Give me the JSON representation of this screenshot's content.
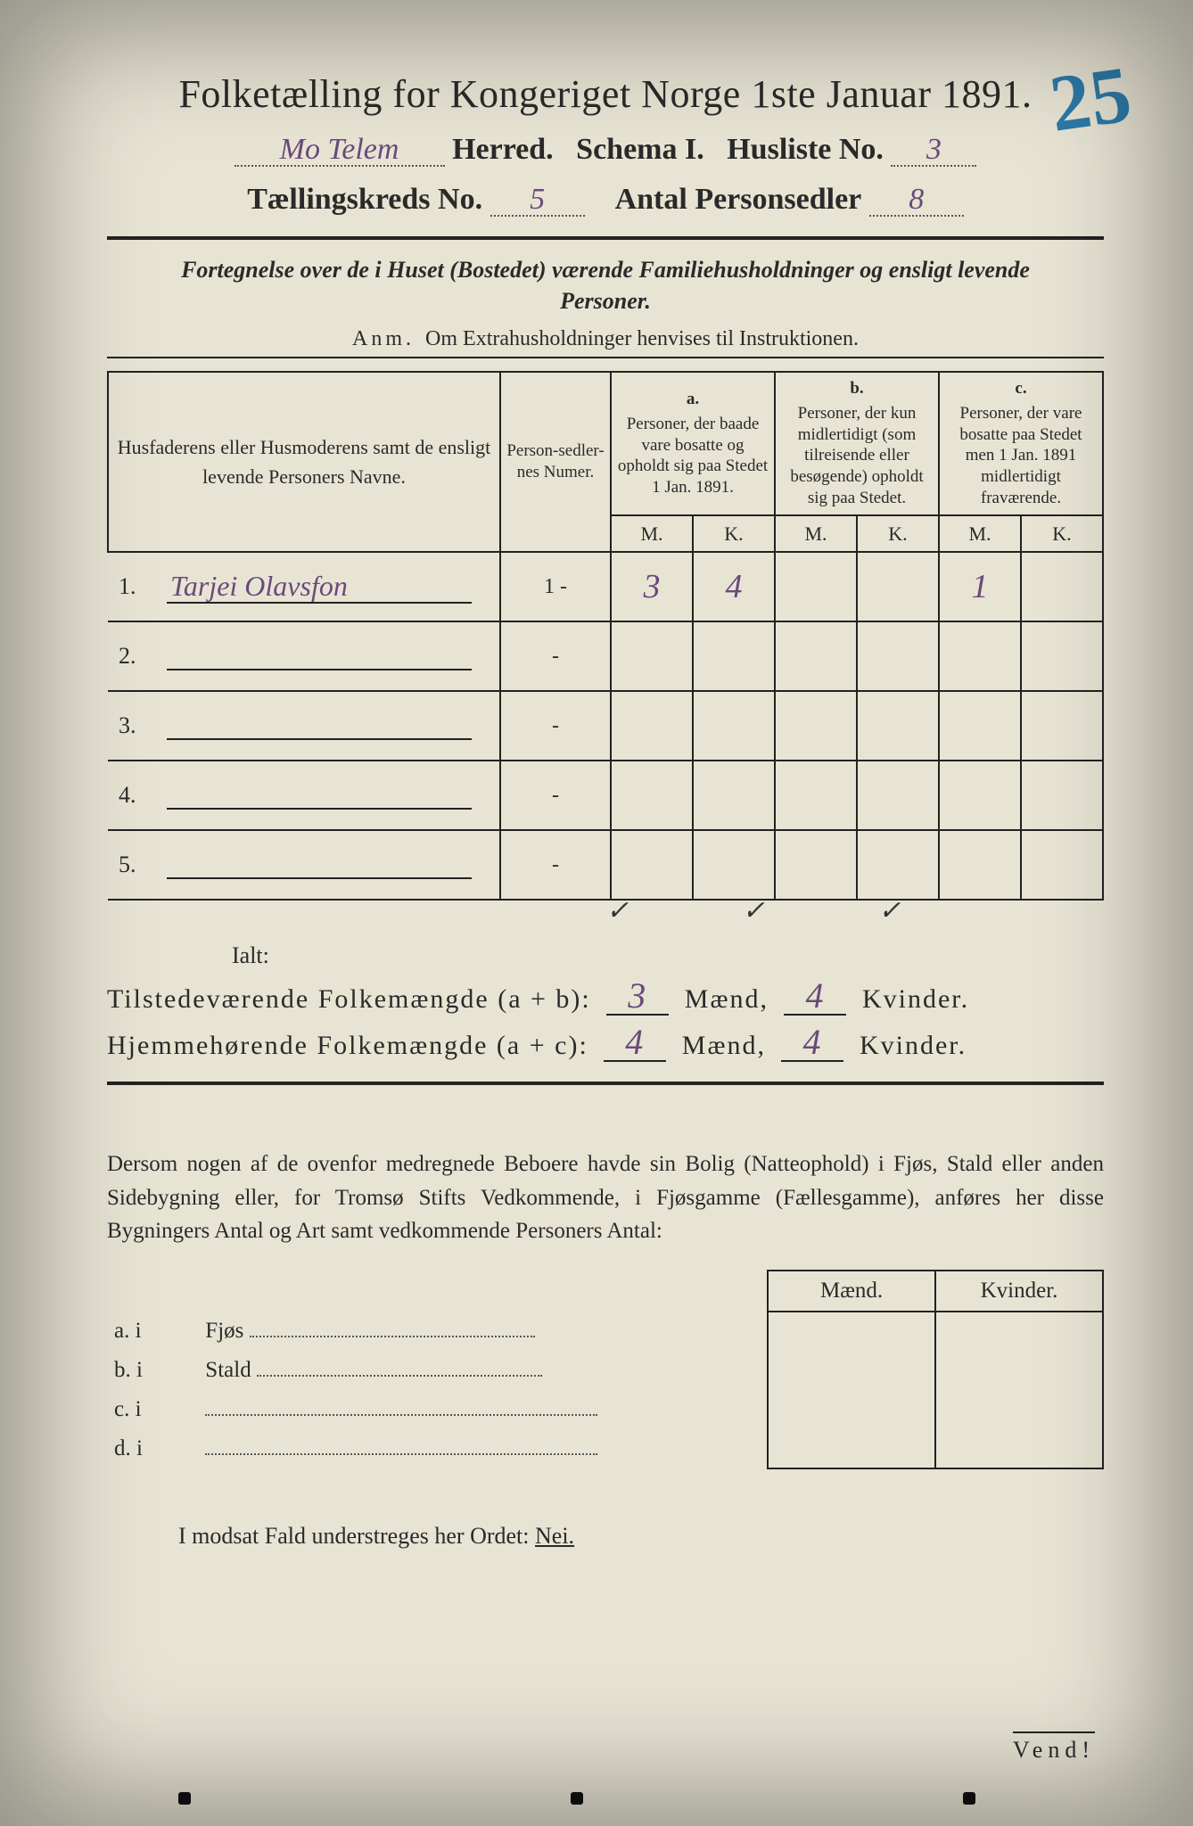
{
  "annotation": {
    "page_number": "25"
  },
  "header": {
    "title": "Folketælling for Kongeriget Norge 1ste Januar 1891.",
    "line2": {
      "herred_value": "Mo Telem",
      "herred_label": "Herred.",
      "schema_label": "Schema I.",
      "husliste_label": "Husliste No.",
      "husliste_value": "3"
    },
    "line3": {
      "kreds_label": "Tællingskreds No.",
      "kreds_value": "5",
      "antal_label": "Antal Personsedler",
      "antal_value": "8"
    }
  },
  "subhead": "Fortegnelse over de i Huset (Bostedet) værende Familiehusholdninger og ensligt levende Personer.",
  "anm": {
    "label": "Anm.",
    "text": "Om Extrahusholdninger henvises til Instruktionen."
  },
  "table": {
    "head": {
      "name_col": "Husfaderens eller Husmoderens samt de ensligt levende Personers Navne.",
      "ps_col": "Person-sedler-nes Numer.",
      "a": {
        "letter": "a.",
        "text": "Personer, der baade vare bosatte og opholdt sig paa Stedet 1 Jan. 1891."
      },
      "b": {
        "letter": "b.",
        "text": "Personer, der kun midlertidigt (som tilreisende eller besøgende) opholdt sig paa Stedet."
      },
      "c": {
        "letter": "c.",
        "text": "Personer, der vare bosatte paa Stedet men 1 Jan. 1891 midlertidigt fraværende."
      },
      "M": "M.",
      "K": "K."
    },
    "rows": [
      {
        "n": "1.",
        "name": "Tarjei Olavsfon",
        "ps": "1 -",
        "aM": "3",
        "aK": "4",
        "bM": "",
        "bK": "",
        "cM": "1",
        "cK": ""
      },
      {
        "n": "2.",
        "name": "",
        "ps": "-",
        "aM": "",
        "aK": "",
        "bM": "",
        "bK": "",
        "cM": "",
        "cK": ""
      },
      {
        "n": "3.",
        "name": "",
        "ps": "-",
        "aM": "",
        "aK": "",
        "bM": "",
        "bK": "",
        "cM": "",
        "cK": ""
      },
      {
        "n": "4.",
        "name": "",
        "ps": "-",
        "aM": "",
        "aK": "",
        "bM": "",
        "bK": "",
        "cM": "",
        "cK": ""
      },
      {
        "n": "5.",
        "name": "",
        "ps": "-",
        "aM": "",
        "aK": "",
        "bM": "",
        "bK": "",
        "cM": "",
        "cK": ""
      }
    ]
  },
  "checks": "✓   ✓        ✓",
  "ialt": "Ialt:",
  "totals": {
    "r1": {
      "label": "Tilstedeværende Folkemængde (a + b):",
      "m": "3",
      "m_lbl": "Mænd,",
      "k": "4",
      "k_lbl": "Kvinder."
    },
    "r2": {
      "label": "Hjemmehørende Folkemængde (a + c):",
      "m": "4",
      "m_lbl": "Mænd,",
      "k": "4",
      "k_lbl": "Kvinder."
    }
  },
  "para": "Dersom nogen af de ovenfor medregnede Beboere havde sin Bolig (Natteophold) i Fjøs, Stald eller anden Sidebygning eller, for Tromsø Stifts Vedkommende, i Fjøsgamme (Fællesgamme), anføres her disse Bygningers Antal og Art samt vedkommende Personers Antal:",
  "side": {
    "head_m": "Mænd.",
    "head_k": "Kvinder.",
    "rows": [
      {
        "l": "a.  i",
        "t": "Fjøs"
      },
      {
        "l": "b.  i",
        "t": "Stald"
      },
      {
        "l": "c.  i",
        "t": ""
      },
      {
        "l": "d.  i",
        "t": ""
      }
    ]
  },
  "modsat": {
    "pre": "I modsat Fald understreges her Ordet: ",
    "nej": "Nei."
  },
  "vend": "Vend!",
  "colors": {
    "paper": "#e8e4d4",
    "ink": "#2a2a2a",
    "handwriting": "#6a4a7a",
    "blue_crayon": "#2d7aa8",
    "background": "#1a1a1a"
  }
}
